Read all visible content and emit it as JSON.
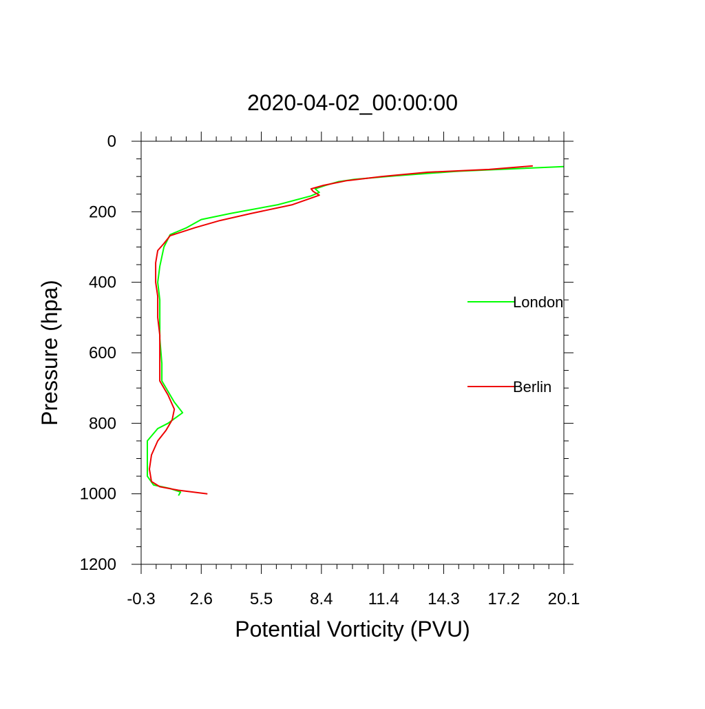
{
  "chart_data": {
    "type": "line",
    "title": "2020-04-02_00:00:00",
    "xlabel": "Potential Vorticity (PVU)",
    "ylabel": "Pressure (hpa)",
    "xlim": [
      -0.3,
      20.1
    ],
    "ylim": [
      0,
      1200
    ],
    "y_inverted": true,
    "xticks": [
      -0.3,
      2.6,
      5.5,
      8.4,
      11.4,
      14.3,
      17.2,
      20.1
    ],
    "xtick_labels": [
      "-0.3",
      "2.6",
      "5.5",
      "8.4",
      "11.4",
      "14.3",
      "17.2",
      "20.1"
    ],
    "yticks": [
      0,
      200,
      400,
      600,
      800,
      1000,
      1200
    ],
    "ytick_labels": [
      "0",
      "200",
      "400",
      "600",
      "800",
      "1000",
      "1200"
    ],
    "legend_position": "right",
    "series": [
      {
        "name": "London",
        "color": "#00ff00",
        "points": [
          [
            20.1,
            72
          ],
          [
            15.0,
            85
          ],
          [
            12.0,
            98
          ],
          [
            10.0,
            108
          ],
          [
            9.2,
            115
          ],
          [
            8.6,
            125
          ],
          [
            8.1,
            135
          ],
          [
            8.3,
            145
          ],
          [
            7.9,
            155
          ],
          [
            6.3,
            180
          ],
          [
            4.0,
            205
          ],
          [
            2.6,
            222
          ],
          [
            1.9,
            245
          ],
          [
            1.1,
            265
          ],
          [
            0.8,
            300
          ],
          [
            0.6,
            355
          ],
          [
            0.5,
            400
          ],
          [
            0.6,
            450
          ],
          [
            0.6,
            510
          ],
          [
            0.6,
            560
          ],
          [
            0.7,
            630
          ],
          [
            0.7,
            680
          ],
          [
            1.3,
            740
          ],
          [
            1.7,
            770
          ],
          [
            1.0,
            800
          ],
          [
            0.5,
            815
          ],
          [
            0.0,
            850
          ],
          [
            0.0,
            950
          ],
          [
            0.3,
            975
          ],
          [
            1.1,
            985
          ],
          [
            1.6,
            995
          ],
          [
            1.5,
            1005
          ]
        ]
      },
      {
        "name": "Berlin",
        "color": "#ee0000",
        "points": [
          [
            18.6,
            70
          ],
          [
            16.5,
            80
          ],
          [
            13.5,
            88
          ],
          [
            11.3,
            100
          ],
          [
            9.6,
            112
          ],
          [
            8.5,
            125
          ],
          [
            7.9,
            135
          ],
          [
            8.0,
            142
          ],
          [
            8.3,
            153
          ],
          [
            7.0,
            180
          ],
          [
            5.0,
            205
          ],
          [
            3.5,
            225
          ],
          [
            2.3,
            245
          ],
          [
            1.1,
            268
          ],
          [
            0.8,
            290
          ],
          [
            0.5,
            310
          ],
          [
            0.4,
            345
          ],
          [
            0.4,
            400
          ],
          [
            0.5,
            440
          ],
          [
            0.5,
            500
          ],
          [
            0.6,
            550
          ],
          [
            0.6,
            630
          ],
          [
            0.6,
            680
          ],
          [
            1.0,
            720
          ],
          [
            1.3,
            760
          ],
          [
            1.2,
            790
          ],
          [
            0.9,
            820
          ],
          [
            0.5,
            850
          ],
          [
            0.2,
            890
          ],
          [
            0.1,
            930
          ],
          [
            0.2,
            965
          ],
          [
            0.6,
            980
          ],
          [
            1.5,
            990
          ],
          [
            2.9,
            1000
          ]
        ]
      }
    ]
  }
}
